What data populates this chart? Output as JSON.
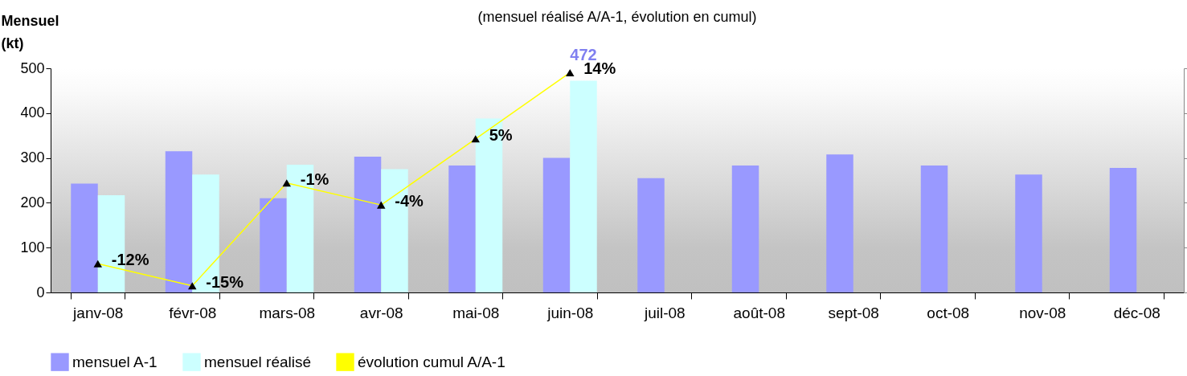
{
  "chart_data": {
    "type": "bar",
    "title": "(mensuel réalisé A/A-1, évolution en cumul)",
    "ylabel": "Mensuel (kt)",
    "categories": [
      "janv-08",
      "févr-08",
      "mars-08",
      "avr-08",
      "mai-08",
      "juin-08",
      "juil-08",
      "août-08",
      "sept-08",
      "oct-08",
      "nov-08",
      "déc-08"
    ],
    "series": [
      {
        "name": "mensuel A-1",
        "color": "#9999ff",
        "values": [
          243,
          315,
          210,
          303,
          283,
          300,
          255,
          283,
          308,
          283,
          263,
          278
        ]
      },
      {
        "name": "mensuel réalisé",
        "color": "#ccffff",
        "values": [
          217,
          263,
          285,
          275,
          388,
          472,
          null,
          null,
          null,
          null,
          null,
          null
        ],
        "value_labels": [
          null,
          null,
          null,
          null,
          null,
          "472",
          null,
          null,
          null,
          null,
          null,
          null
        ]
      },
      {
        "name": "évolution cumul A/A-1",
        "type": "line",
        "axis": "y2",
        "color": "#ffff00",
        "marker": "triangle",
        "values": [
          -12,
          -15,
          -1,
          -4,
          5,
          14,
          null,
          null,
          null,
          null,
          null,
          null
        ],
        "value_labels": [
          "-12%",
          "-15%",
          "-1%",
          "-4%",
          "5%",
          "14%",
          null,
          null,
          null,
          null,
          null,
          null
        ]
      }
    ],
    "ylim": [
      0,
      500
    ],
    "yticks": [
      0,
      100,
      200,
      300,
      400,
      500
    ],
    "y2lim": [
      -15.9,
      14.6
    ],
    "grid": false,
    "legend": "bottom"
  }
}
